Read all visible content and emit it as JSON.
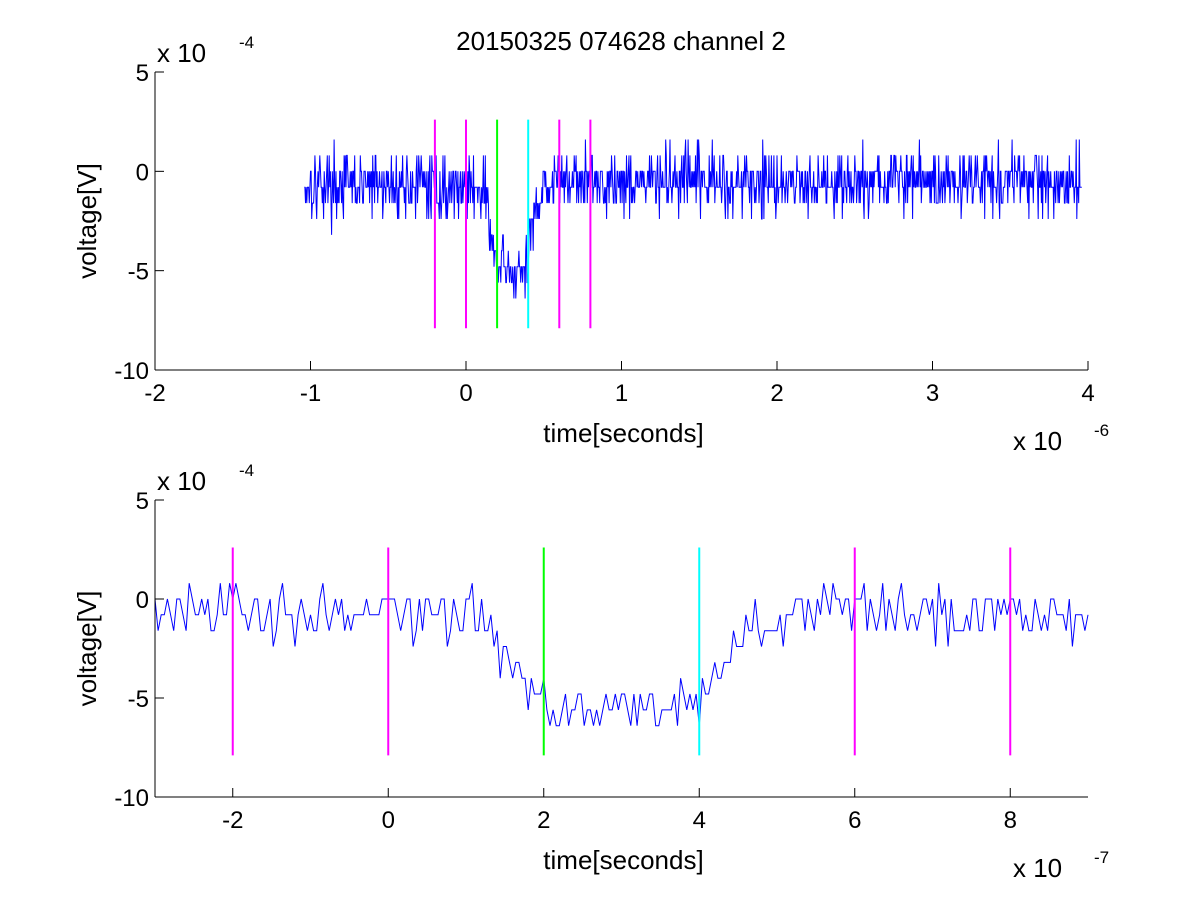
{
  "title": "20150325 074628 channel 2",
  "colors": {
    "signal": "#0000ff",
    "marker_magenta": "#ff00ff",
    "marker_green": "#00ff00",
    "marker_cyan": "#00ffff",
    "axes": "#000000"
  },
  "chart_data": [
    {
      "type": "line",
      "xlabel": "time[seconds]",
      "ylabel": "voltage[V]",
      "x_exponent_label": "x 10",
      "x_exponent": "-6",
      "y_exponent_label": "x 10",
      "y_exponent": "-4",
      "xlim": [
        -2,
        4
      ],
      "ylim": [
        -10,
        5
      ],
      "x_ticks": [
        -2,
        -1,
        0,
        1,
        2,
        3,
        4
      ],
      "x_tick_labels": [
        "-2",
        "-1",
        "0",
        "1",
        "2",
        "3",
        "4"
      ],
      "y_ticks": [
        5,
        0,
        -5,
        -10
      ],
      "y_tick_labels": [
        "5",
        "0",
        "-5",
        "-10"
      ],
      "grid": false,
      "markers": [
        {
          "x": -0.2,
          "color": "magenta",
          "y_range": [
            -7.9,
            2.6
          ]
        },
        {
          "x": 0.0,
          "color": "magenta",
          "y_range": [
            -7.9,
            2.6
          ]
        },
        {
          "x": 0.2,
          "color": "green",
          "y_range": [
            -7.9,
            2.6
          ]
        },
        {
          "x": 0.4,
          "color": "cyan",
          "y_range": [
            -7.9,
            2.6
          ]
        },
        {
          "x": 0.6,
          "color": "magenta",
          "y_range": [
            -7.9,
            2.6
          ]
        },
        {
          "x": 0.8,
          "color": "magenta",
          "y_range": [
            -7.9,
            2.6
          ]
        }
      ],
      "series": [
        {
          "x_start": -1.04,
          "x_step": 0.004,
          "envelope_x": [
            -1.04,
            0.12,
            0.16,
            0.2,
            0.38,
            0.42,
            0.44,
            0.5,
            3.96
          ],
          "envelope_y": [
            -0.7,
            -0.8,
            -3.5,
            -5.0,
            -5.2,
            -3.5,
            -2.0,
            -0.5,
            -0.5
          ],
          "noise_amplitude": 1.6
        }
      ]
    },
    {
      "type": "line",
      "xlabel": "time[seconds]",
      "ylabel": "voltage[V]",
      "x_exponent_label": "x 10",
      "x_exponent": "-7",
      "y_exponent_label": "x 10",
      "y_exponent": "-4",
      "xlim": [
        -3,
        9
      ],
      "ylim": [
        -10,
        5
      ],
      "x_ticks": [
        -2,
        0,
        2,
        4,
        6,
        8
      ],
      "x_tick_labels": [
        "-2",
        "0",
        "2",
        "4",
        "6",
        "8"
      ],
      "y_ticks": [
        5,
        0,
        -5,
        -10
      ],
      "y_tick_labels": [
        "5",
        "0",
        "-5",
        "-10"
      ],
      "grid": false,
      "markers": [
        {
          "x": -2,
          "color": "magenta",
          "y_range": [
            -7.9,
            2.6
          ]
        },
        {
          "x": 0,
          "color": "magenta",
          "y_range": [
            -7.9,
            2.6
          ]
        },
        {
          "x": 2,
          "color": "green",
          "y_range": [
            -7.9,
            2.6
          ]
        },
        {
          "x": 4,
          "color": "cyan",
          "y_range": [
            -7.9,
            2.6
          ]
        },
        {
          "x": 6,
          "color": "magenta",
          "y_range": [
            -7.9,
            2.6
          ]
        },
        {
          "x": 8,
          "color": "magenta",
          "y_range": [
            -7.9,
            2.6
          ]
        }
      ],
      "series": [
        {
          "x_start": -3.0,
          "x_step": 0.04,
          "envelope_x": [
            -3.0,
            1.2,
            1.6,
            2.0,
            3.8,
            4.2,
            4.6,
            5.2,
            9.0
          ],
          "envelope_y": [
            -0.6,
            -0.8,
            -3.5,
            -5.2,
            -5.5,
            -4.0,
            -2.0,
            -0.5,
            -0.6
          ],
          "noise_amplitude": 1.4
        }
      ]
    }
  ]
}
